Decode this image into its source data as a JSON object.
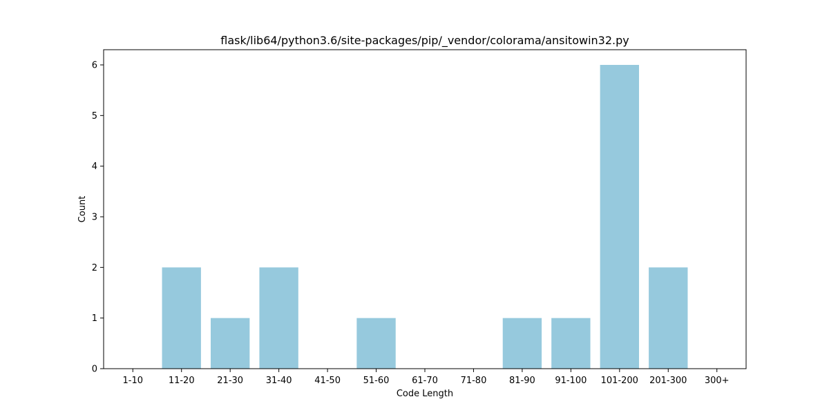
{
  "chart_data": {
    "type": "bar",
    "title": "flask/lib64/python3.6/site-packages/pip/_vendor/colorama/ansitowin32.py",
    "xlabel": "Code Length",
    "ylabel": "Count",
    "categories": [
      "1-10",
      "11-20",
      "21-30",
      "31-40",
      "41-50",
      "51-60",
      "61-70",
      "71-80",
      "81-90",
      "91-100",
      "101-200",
      "201-300",
      "300+"
    ],
    "values": [
      0,
      2,
      1,
      2,
      0,
      1,
      0,
      0,
      1,
      1,
      6,
      2,
      0
    ],
    "ylim": [
      0,
      6.3
    ],
    "yticks": [
      "0",
      "1",
      "2",
      "3",
      "4",
      "5",
      "6"
    ],
    "grid": false,
    "legend": "none",
    "bar_color": "#96c9dd"
  }
}
